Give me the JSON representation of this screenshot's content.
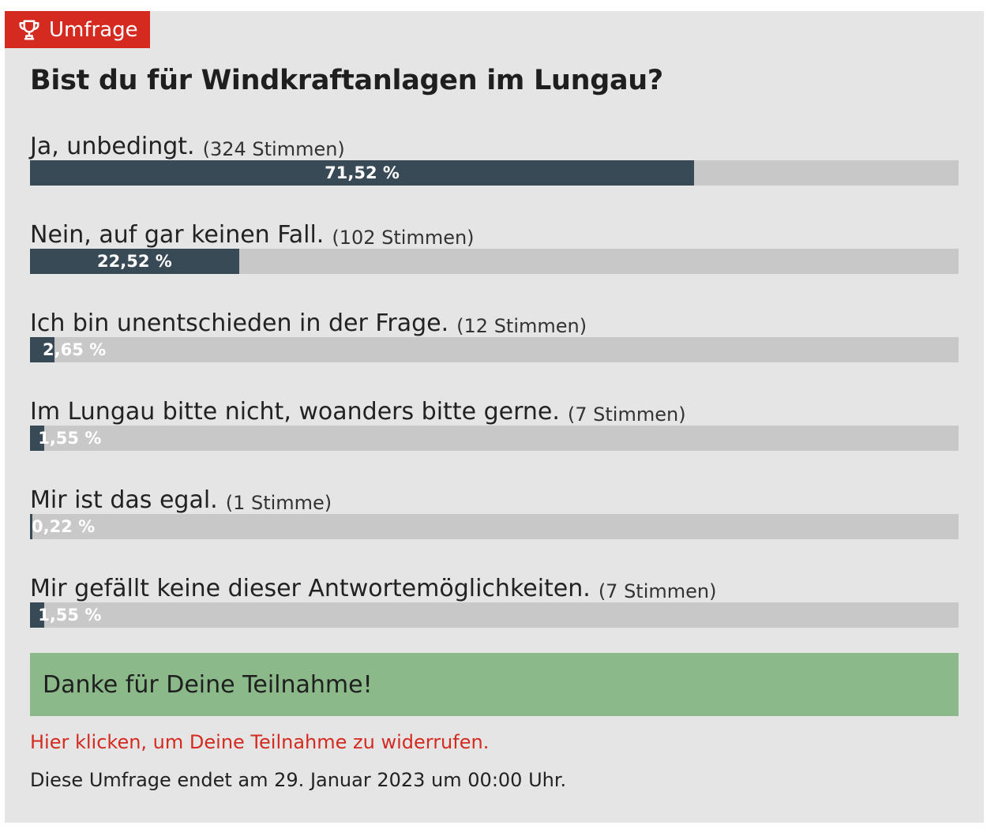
{
  "badge": {
    "label": "Umfrage",
    "icon": "trophy-icon",
    "color": "#d42a20"
  },
  "poll": {
    "question": "Bist du für Windkraftanlagen im Lungau?",
    "options": [
      {
        "label": "Ja, unbedingt.",
        "votes": "(324 Stimmen)",
        "percent_label": "71,52 %",
        "percent": 71.52
      },
      {
        "label": "Nein, auf gar keinen Fall.",
        "votes": "(102 Stimmen)",
        "percent_label": "22,52 %",
        "percent": 22.52
      },
      {
        "label": "Ich bin unentschieden in der Frage.",
        "votes": "(12 Stimmen)",
        "percent_label": "2,65 %",
        "percent": 2.65
      },
      {
        "label": "Im Lungau bitte nicht, woanders bitte gerne.",
        "votes": "(7 Stimmen)",
        "percent_label": "1,55 %",
        "percent": 1.55
      },
      {
        "label": "Mir ist das egal.",
        "votes": "(1 Stimme)",
        "percent_label": "0,22 %",
        "percent": 0.22
      },
      {
        "label": "Mir gefällt keine dieser Antwortemöglichkeiten.",
        "votes": "(7 Stimmen)",
        "percent_label": "1,55 %",
        "percent": 1.55
      }
    ],
    "bar_color": "#394a57",
    "track_color": "#c8c8c8"
  },
  "thanks": {
    "text": "Danke für Deine Teilnahme!",
    "color": "#8bb98a"
  },
  "revoke": {
    "text": "Hier klicken, um Deine Teilnahme zu widerrufen.",
    "color": "#d42a20"
  },
  "end_note": "Diese Umfrage endet am 29. Januar 2023 um 00:00 Uhr."
}
